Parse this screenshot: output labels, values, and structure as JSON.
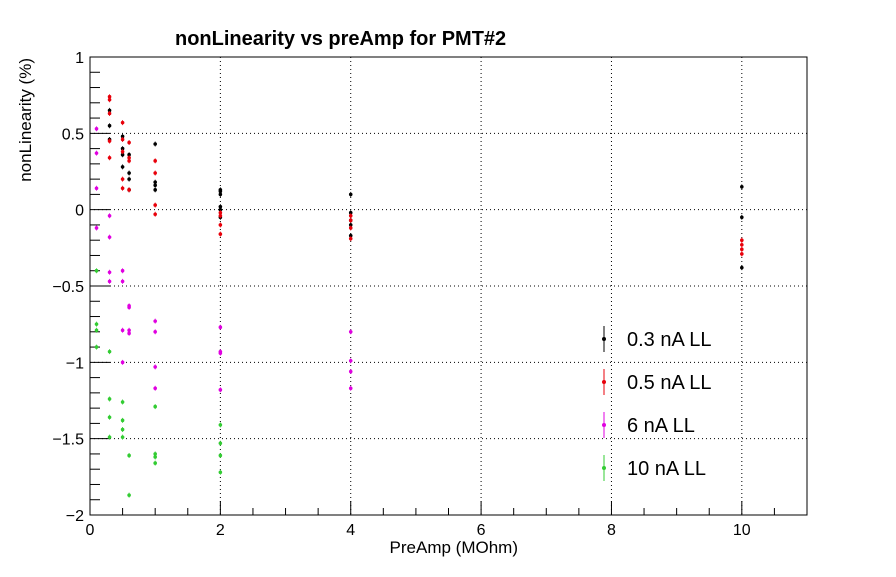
{
  "chart_data": {
    "type": "scatter",
    "title": "nonLinearity vs preAmp for PMT#2",
    "xlabel": "PreAmp (MOhm)",
    "ylabel": "nonLinearity (%)",
    "xlim": [
      0,
      11
    ],
    "ylim": [
      -2,
      1
    ],
    "x_ticks": [
      0,
      2,
      4,
      6,
      8,
      10
    ],
    "y_ticks": [
      1,
      0.5,
      0,
      -0.5,
      -1,
      -1.5,
      -2
    ],
    "x_tick_labels": [
      "0",
      "2",
      "4",
      "6",
      "8",
      "10"
    ],
    "y_tick_labels": [
      "1",
      "0.5",
      "0",
      "−0.5",
      "−1",
      "−1.5",
      "−2"
    ],
    "grid": true,
    "legend_position": "bottom-right",
    "series": [
      {
        "name": "0.3 nA LL",
        "color": "#000000",
        "points": [
          [
            0.3,
            0.65
          ],
          [
            0.3,
            0.55
          ],
          [
            0.3,
            0.46
          ],
          [
            0.5,
            0.48
          ],
          [
            0.5,
            0.4
          ],
          [
            0.5,
            0.36
          ],
          [
            0.5,
            0.28
          ],
          [
            0.6,
            0.36
          ],
          [
            0.6,
            0.24
          ],
          [
            0.6,
            0.2
          ],
          [
            0.6,
            0.13
          ],
          [
            1.0,
            0.43
          ],
          [
            1.0,
            0.18
          ],
          [
            1.0,
            0.16
          ],
          [
            1.0,
            0.13
          ],
          [
            2.0,
            0.13
          ],
          [
            2.0,
            0.12
          ],
          [
            2.0,
            0.1
          ],
          [
            2.0,
            0.02
          ],
          [
            2.0,
            0.0
          ],
          [
            2.0,
            -0.05
          ],
          [
            4.0,
            0.1
          ],
          [
            4.0,
            -0.02
          ],
          [
            4.0,
            -0.07
          ],
          [
            4.0,
            -0.1
          ],
          [
            4.0,
            -0.17
          ],
          [
            10.0,
            0.15
          ],
          [
            10.0,
            -0.05
          ],
          [
            10.0,
            -0.38
          ]
        ]
      },
      {
        "name": "0.5 nA LL",
        "color": "#e8000b",
        "points": [
          [
            0.3,
            0.74
          ],
          [
            0.3,
            0.72
          ],
          [
            0.3,
            0.63
          ],
          [
            0.3,
            0.45
          ],
          [
            0.3,
            0.34
          ],
          [
            0.5,
            0.57
          ],
          [
            0.5,
            0.46
          ],
          [
            0.5,
            0.38
          ],
          [
            0.5,
            0.2
          ],
          [
            0.5,
            0.14
          ],
          [
            0.6,
            0.44
          ],
          [
            0.6,
            0.34
          ],
          [
            0.6,
            0.32
          ],
          [
            0.6,
            0.13
          ],
          [
            1.0,
            0.32
          ],
          [
            1.0,
            0.24
          ],
          [
            1.0,
            0.03
          ],
          [
            1.0,
            -0.03
          ],
          [
            2.0,
            -0.02
          ],
          [
            2.0,
            -0.04
          ],
          [
            2.0,
            -0.1
          ],
          [
            2.0,
            -0.16
          ],
          [
            4.0,
            -0.04
          ],
          [
            4.0,
            -0.07
          ],
          [
            4.0,
            -0.12
          ],
          [
            4.0,
            -0.19
          ],
          [
            10.0,
            -0.2
          ],
          [
            10.0,
            -0.23
          ],
          [
            10.0,
            -0.26
          ],
          [
            10.0,
            -0.29
          ]
        ]
      },
      {
        "name": "6 nA LL",
        "color": "#e000e0",
        "points": [
          [
            0.1,
            0.53
          ],
          [
            0.1,
            0.37
          ],
          [
            0.1,
            0.14
          ],
          [
            0.1,
            -0.12
          ],
          [
            0.3,
            -0.04
          ],
          [
            0.3,
            -0.18
          ],
          [
            0.3,
            -0.41
          ],
          [
            0.3,
            -0.47
          ],
          [
            0.5,
            -0.4
          ],
          [
            0.5,
            -0.47
          ],
          [
            0.5,
            -0.79
          ],
          [
            0.5,
            -1.0
          ],
          [
            0.6,
            -0.63
          ],
          [
            0.6,
            -0.64
          ],
          [
            0.6,
            -0.79
          ],
          [
            0.6,
            -0.81
          ],
          [
            1.0,
            -0.73
          ],
          [
            1.0,
            -0.8
          ],
          [
            1.0,
            -1.03
          ],
          [
            1.0,
            -1.17
          ],
          [
            2.0,
            -0.77
          ],
          [
            2.0,
            -0.93
          ],
          [
            2.0,
            -0.94
          ],
          [
            2.0,
            -1.18
          ],
          [
            4.0,
            -0.8
          ],
          [
            4.0,
            -0.99
          ],
          [
            4.0,
            -1.06
          ],
          [
            4.0,
            -1.17
          ]
        ]
      },
      {
        "name": "10 nA LL",
        "color": "#33cc33",
        "points": [
          [
            0.1,
            -0.4
          ],
          [
            0.1,
            -0.75
          ],
          [
            0.1,
            -0.79
          ],
          [
            0.1,
            -0.9
          ],
          [
            0.3,
            -0.93
          ],
          [
            0.3,
            -1.24
          ],
          [
            0.3,
            -1.36
          ],
          [
            0.3,
            -1.49
          ],
          [
            0.5,
            -1.26
          ],
          [
            0.5,
            -1.38
          ],
          [
            0.5,
            -1.44
          ],
          [
            0.5,
            -1.49
          ],
          [
            0.6,
            -1.61
          ],
          [
            0.6,
            -1.87
          ],
          [
            1.0,
            -1.29
          ],
          [
            1.0,
            -1.6
          ],
          [
            1.0,
            -1.62
          ],
          [
            1.0,
            -1.66
          ],
          [
            2.0,
            -1.41
          ],
          [
            2.0,
            -1.53
          ],
          [
            2.0,
            -1.61
          ],
          [
            2.0,
            -1.72
          ]
        ]
      }
    ]
  }
}
